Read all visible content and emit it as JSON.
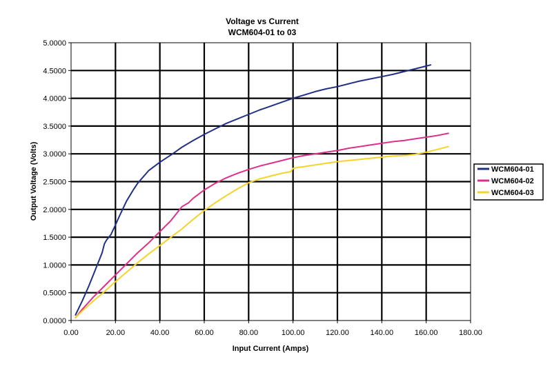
{
  "chart_data": {
    "type": "line",
    "title": "Voltage vs Current",
    "subtitle": "WCM604-01 to 03",
    "xlabel": "Input Current (Amps)",
    "ylabel": "Output Voltage (Volts)",
    "xlim": [
      0,
      180
    ],
    "ylim": [
      0,
      5
    ],
    "x_ticks": [
      "0.00",
      "20.00",
      "40.00",
      "60.00",
      "80.00",
      "100.00",
      "120.00",
      "140.00",
      "160.00",
      "180.00"
    ],
    "y_ticks": [
      "0.0000",
      "0.5000",
      "1.0000",
      "1.5000",
      "2.0000",
      "2.5000",
      "3.0000",
      "3.5000",
      "4.0000",
      "4.5000",
      "5.0000"
    ],
    "grid": true,
    "legend_position": "right",
    "series": [
      {
        "name": "WCM604-01",
        "color": "#1f2f86",
        "x": [
          2,
          5,
          8,
          10,
          12,
          14,
          15,
          16,
          18,
          20,
          22,
          25,
          28,
          30,
          35,
          40,
          45,
          50,
          55,
          60,
          65,
          70,
          75,
          80,
          85,
          90,
          95,
          100,
          105,
          110,
          115,
          120,
          125,
          130,
          135,
          140,
          145,
          150,
          155,
          160,
          162
        ],
        "y": [
          0.1,
          0.35,
          0.62,
          0.82,
          1.02,
          1.22,
          1.38,
          1.45,
          1.55,
          1.72,
          1.9,
          2.15,
          2.35,
          2.47,
          2.7,
          2.85,
          2.98,
          3.12,
          3.24,
          3.35,
          3.45,
          3.55,
          3.63,
          3.71,
          3.79,
          3.86,
          3.93,
          4.0,
          4.06,
          4.12,
          4.17,
          4.21,
          4.26,
          4.31,
          4.35,
          4.39,
          4.43,
          4.48,
          4.53,
          4.58,
          4.6
        ]
      },
      {
        "name": "WCM604-02",
        "color": "#dd2f8a",
        "x": [
          2,
          5,
          10,
          15,
          20,
          25,
          30,
          35,
          40,
          45,
          48,
          50,
          53,
          55,
          60,
          65,
          70,
          75,
          80,
          85,
          90,
          95,
          100,
          105,
          110,
          115,
          120,
          125,
          130,
          135,
          140,
          145,
          150,
          155,
          160,
          165,
          170
        ],
        "y": [
          0.05,
          0.2,
          0.42,
          0.62,
          0.82,
          1.02,
          1.22,
          1.4,
          1.6,
          1.8,
          1.95,
          2.05,
          2.12,
          2.2,
          2.35,
          2.47,
          2.57,
          2.65,
          2.72,
          2.78,
          2.83,
          2.88,
          2.93,
          2.97,
          3.0,
          3.03,
          3.06,
          3.1,
          3.13,
          3.16,
          3.19,
          3.22,
          3.24,
          3.27,
          3.3,
          3.33,
          3.37
        ]
      },
      {
        "name": "WCM604-03",
        "color": "#f5d327",
        "x": [
          2,
          5,
          10,
          15,
          20,
          25,
          30,
          35,
          40,
          45,
          50,
          55,
          60,
          65,
          70,
          75,
          80,
          85,
          90,
          95,
          99,
          100,
          103,
          105,
          110,
          115,
          120,
          125,
          130,
          135,
          140,
          145,
          150,
          155,
          160,
          165,
          170
        ],
        "y": [
          0.05,
          0.17,
          0.35,
          0.52,
          0.7,
          0.87,
          1.04,
          1.2,
          1.35,
          1.5,
          1.65,
          1.82,
          1.98,
          2.12,
          2.25,
          2.37,
          2.48,
          2.55,
          2.6,
          2.65,
          2.68,
          2.74,
          2.76,
          2.77,
          2.8,
          2.83,
          2.86,
          2.88,
          2.9,
          2.92,
          2.94,
          2.96,
          2.97,
          2.99,
          3.03,
          3.08,
          3.13
        ]
      }
    ]
  }
}
